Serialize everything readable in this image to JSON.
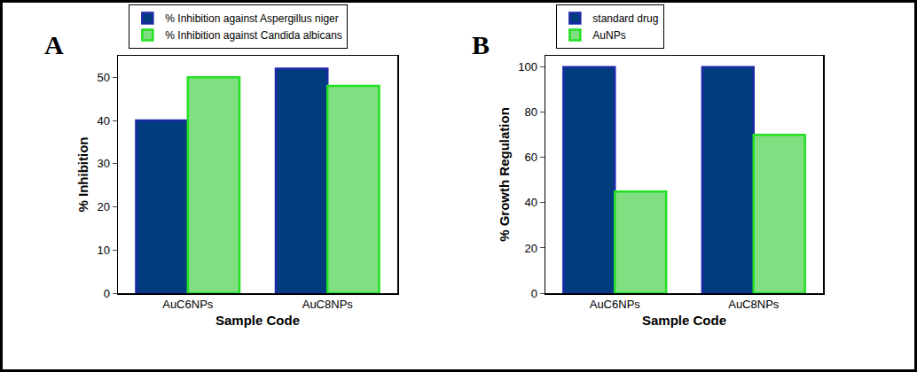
{
  "chart_data": [
    {
      "type": "bar",
      "title": "A",
      "x_label": "Sample Code",
      "y_label": "% Inhibition",
      "categories": [
        "AuC6NPs",
        "AuC8NPs"
      ],
      "series": [
        {
          "name": "% Inhibition against Aspergillus niger",
          "color": "#003c7e",
          "values": [
            40,
            52
          ]
        },
        {
          "name": "% Inhibition against Candida albicans",
          "color": "#80df80",
          "values": [
            50,
            48
          ]
        }
      ],
      "ylim": [
        0,
        55
      ],
      "yticks": [
        0,
        10,
        20,
        30,
        40,
        50
      ],
      "legend": "top"
    },
    {
      "type": "bar",
      "title": "B",
      "x_label": "Sample Code",
      "y_label": "% Growth Regulation",
      "categories": [
        "AuC6NPs",
        "AuC8NPs"
      ],
      "series": [
        {
          "name": "standard drug",
          "color": "#003c7e",
          "values": [
            100,
            100
          ]
        },
        {
          "name": "AuNPs",
          "color": "#80df80",
          "values": [
            45,
            70
          ]
        }
      ],
      "ylim": [
        0,
        105
      ],
      "yticks": [
        0,
        20,
        40,
        60,
        80,
        100
      ],
      "legend": "top"
    }
  ]
}
